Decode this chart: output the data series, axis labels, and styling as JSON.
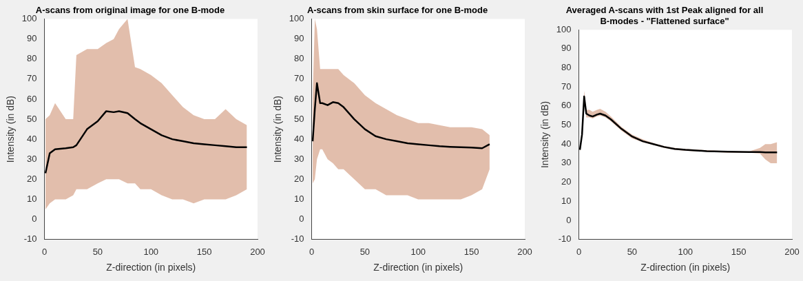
{
  "chart_data": [
    {
      "type": "line",
      "title": "A-scans from original image for one B-mode",
      "xlabel": "Z-direction (in pixels)",
      "ylabel": "Intensity (in dB)",
      "xlim": [
        0,
        200
      ],
      "xticks": [
        0,
        50,
        100,
        150,
        200
      ],
      "ylim": [
        -10,
        100
      ],
      "yticks": [
        -10,
        0,
        10,
        20,
        30,
        40,
        50,
        60,
        70,
        80,
        90,
        100
      ],
      "grid": false,
      "legend": false,
      "marker": "none",
      "series": [
        {
          "color": "#000000",
          "x": [
            1,
            5,
            10,
            20,
            27,
            30,
            40,
            50,
            58,
            65,
            70,
            78,
            85,
            90,
            100,
            110,
            120,
            130,
            140,
            150,
            160,
            170,
            180,
            190
          ],
          "values": [
            23,
            33,
            35,
            35.5,
            36,
            37,
            45,
            49,
            54,
            53.5,
            54,
            53,
            50,
            48,
            45,
            42,
            40,
            39,
            38,
            37.5,
            37,
            36.5,
            36,
            36
          ],
          "lower": [
            5,
            8,
            10,
            10,
            12,
            15,
            15,
            18,
            20,
            20,
            20,
            18,
            18,
            15,
            15,
            12,
            10,
            10,
            8,
            10,
            10,
            10,
            12,
            15
          ],
          "upper": [
            50,
            52,
            58,
            50,
            50,
            82,
            85,
            85,
            88,
            90,
            95,
            100,
            76,
            75,
            72,
            68,
            62,
            56,
            52,
            50,
            50,
            55,
            50,
            47
          ]
        }
      ]
    },
    {
      "type": "line",
      "title": "A-scans from skin surface for one B-mode",
      "xlabel": "Z-direction (in pixels)",
      "ylabel": "Intensity (in dB)",
      "xlim": [
        0,
        200
      ],
      "xticks": [
        0,
        50,
        100,
        150,
        200
      ],
      "ylim": [
        -10,
        100
      ],
      "yticks": [
        -10,
        0,
        10,
        20,
        30,
        40,
        50,
        60,
        70,
        80,
        90,
        100
      ],
      "grid": false,
      "legend": false,
      "marker": "none",
      "series": [
        {
          "color": "#000000",
          "x": [
            1,
            3,
            5,
            8,
            10,
            15,
            20,
            25,
            30,
            40,
            50,
            60,
            70,
            80,
            90,
            100,
            110,
            120,
            130,
            140,
            150,
            160,
            167
          ],
          "values": [
            39,
            55,
            68,
            58,
            58,
            57,
            58.5,
            58,
            56,
            50,
            45,
            41.5,
            40,
            39,
            38,
            37.5,
            37,
            36.5,
            36.2,
            36,
            35.8,
            35.5,
            37.5
          ],
          "lower": [
            18,
            20,
            30,
            35,
            35,
            30,
            28,
            25,
            25,
            20,
            15,
            15,
            12,
            12,
            12,
            10,
            10,
            10,
            10,
            10,
            12,
            15,
            25
          ],
          "upper": [
            60,
            100,
            95,
            75,
            75,
            75,
            75,
            75,
            72,
            68,
            62,
            58,
            55,
            52,
            50,
            48,
            48,
            47,
            46,
            46,
            46,
            45,
            42
          ]
        }
      ]
    },
    {
      "type": "line",
      "title": "Averaged A-scans with 1st Peak aligned for all B-modes - \"Flattened surface\"",
      "xlabel": "Z-direction (in pixels)",
      "ylabel": "Intensity (in dB)",
      "xlim": [
        0,
        200
      ],
      "xticks": [
        0,
        50,
        100,
        150,
        200
      ],
      "ylim": [
        -10,
        100
      ],
      "yticks": [
        -10,
        0,
        10,
        20,
        30,
        40,
        50,
        60,
        70,
        80,
        90,
        100
      ],
      "grid": false,
      "legend": false,
      "marker": "none",
      "series": [
        {
          "color": "#000000",
          "x": [
            1,
            3,
            5,
            7,
            10,
            13,
            17,
            20,
            25,
            30,
            40,
            50,
            60,
            70,
            80,
            90,
            100,
            120,
            140,
            160,
            170,
            175,
            180,
            186
          ],
          "values": [
            37,
            45,
            65,
            56,
            55,
            54.5,
            55.5,
            56,
            55,
            53,
            48,
            44,
            41.5,
            40,
            38.5,
            37.5,
            37,
            36.3,
            36,
            35.8,
            35.8,
            35.7,
            35.7,
            35.7
          ],
          "lower": [
            36,
            44,
            63,
            54,
            54,
            53.5,
            54.5,
            55,
            54,
            52,
            47,
            43,
            41,
            39.5,
            38,
            37,
            36.5,
            36,
            35.5,
            35.5,
            35,
            32,
            30,
            30
          ],
          "upper": [
            38,
            47,
            68,
            58,
            58,
            57,
            58,
            58.5,
            57,
            54.5,
            49,
            45,
            42.5,
            40.5,
            39,
            38,
            37.5,
            36.8,
            36.3,
            36.2,
            38,
            40,
            40,
            41
          ]
        }
      ]
    }
  ]
}
